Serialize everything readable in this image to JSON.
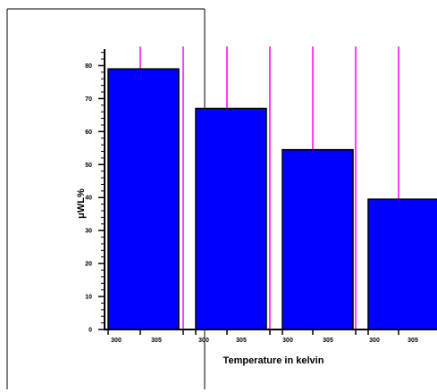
{
  "chart_data": {
    "type": "bar",
    "title": "",
    "xlabel": "Temperature in kelvin",
    "ylabel": "μWL%",
    "ylim": [
      0,
      85
    ],
    "y_ticks": [
      "0",
      "10",
      "20",
      "30",
      "40",
      "50",
      "60",
      "70",
      "80"
    ],
    "x_tick_labels": [
      "300",
      "305",
      "300",
      "305",
      "300",
      "305",
      "300",
      "305"
    ],
    "values": [
      79,
      67,
      54.5,
      39.5
    ],
    "grid": false,
    "bar_color": "#0000ff",
    "reference_line_color": "#ff00ff"
  }
}
